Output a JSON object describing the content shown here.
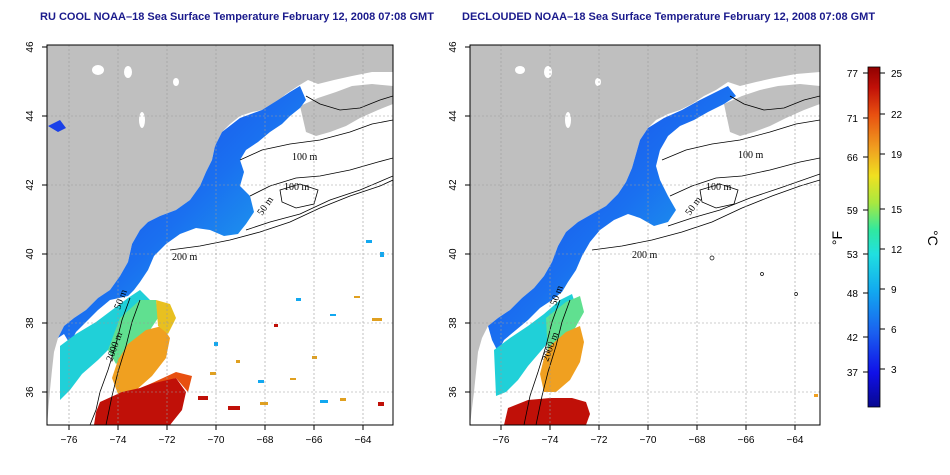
{
  "panels": [
    {
      "title": "RU COOL NOAA–18 Sea Surface Temperature February 12, 2008 07:08 GMT"
    },
    {
      "title": "DECLOUDED NOAA–18 Sea Surface Temperature February 12, 2008 07:08 GMT"
    }
  ],
  "axes": {
    "lon_ticks": [
      "−76",
      "−74",
      "−72",
      "−70",
      "−68",
      "−66",
      "−64"
    ],
    "lat_ticks": [
      "36",
      "38",
      "40",
      "42",
      "44",
      "46"
    ]
  },
  "isobaths": [
    "100 m",
    "100 m",
    "50 m",
    "200 m",
    "50 m",
    "2000 m"
  ],
  "colorbar": {
    "unit_f": "°F",
    "unit_c": "°C",
    "ticks_f": [
      "77",
      "71",
      "66",
      "59",
      "53",
      "48",
      "42",
      "37"
    ],
    "ticks_c": [
      "25",
      "22",
      "19",
      "15",
      "12",
      "9",
      "6",
      "3"
    ]
  },
  "colors": {
    "land": "#bfbfbf",
    "title": "#1a1a8c",
    "scale": [
      "#08088f",
      "#1010e8",
      "#1a60f0",
      "#12a8f0",
      "#20e0e0",
      "#30e8a0",
      "#a8e840",
      "#f0e020",
      "#f0a020",
      "#e85010",
      "#c01008",
      "#900000"
    ]
  }
}
